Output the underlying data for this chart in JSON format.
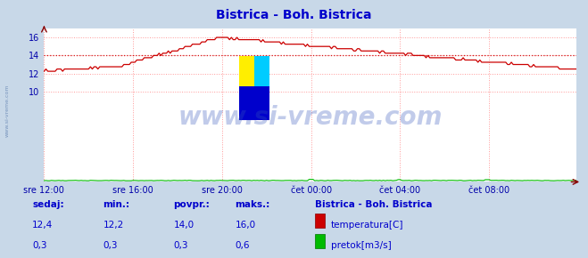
{
  "title": "Bistrica - Boh. Bistrica",
  "title_color": "#0000cc",
  "bg_color": "#c8d8e8",
  "plot_bg_color": "#ffffff",
  "grid_color": "#ff9999",
  "grid_linestyle": ":",
  "xlabel_color": "#0000aa",
  "ylabel_color": "#0000aa",
  "x_tick_labels": [
    "sre 12:00",
    "sre 16:00",
    "sre 20:00",
    "čet 00:00",
    "čet 04:00",
    "čet 08:00"
  ],
  "x_tick_positions": [
    0,
    48,
    96,
    144,
    192,
    240
  ],
  "y_ticks": [
    10,
    12,
    14,
    16
  ],
  "ylim": [
    0,
    17
  ],
  "xlim": [
    0,
    287
  ],
  "temp_avg": 14.0,
  "temp_color": "#cc0000",
  "flow_color": "#00bb00",
  "avg_line_color": "#cc0000",
  "watermark": "www.si-vreme.com",
  "watermark_color": "#3355bb",
  "watermark_alpha": 0.3,
  "footer_color": "#0000cc",
  "legend_title": "Bistrica - Boh. Bistrica",
  "legend_label1": "temperatura[C]",
  "legend_label2": "pretok[m3/s]",
  "footer_labels": [
    "sedaj:",
    "min.:",
    "povpr.:",
    "maks.:"
  ],
  "footer_vals_temp": [
    "12,4",
    "12,2",
    "14,0",
    "16,0"
  ],
  "footer_vals_flow": [
    "0,3",
    "0,3",
    "0,3",
    "0,6"
  ],
  "sidebar_text": "www.si-vreme.com"
}
